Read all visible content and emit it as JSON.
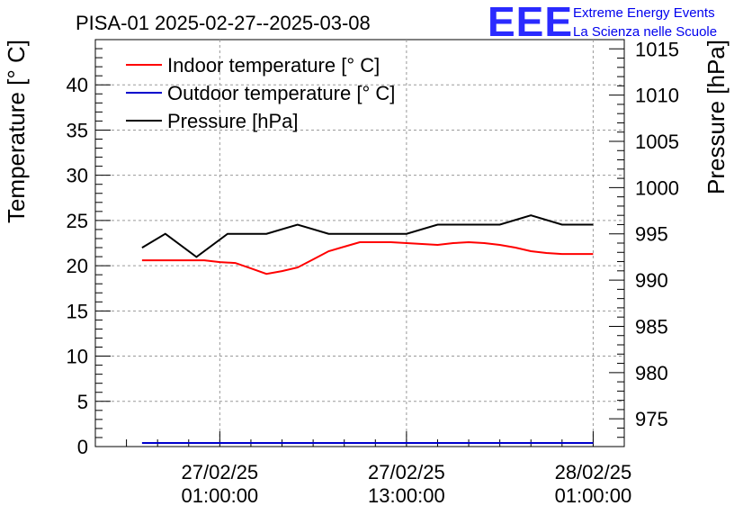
{
  "chart_data": {
    "type": "line",
    "title": "PISA-01 2025-02-27--2025-03-08",
    "ylabel_left": "Temperature [° C]",
    "ylabel_right": "Pressure [hPa]",
    "xlabel": "",
    "x_range_hours": [
      -8,
      26
    ],
    "ylim_left": [
      0,
      45
    ],
    "ylim_right": [
      972,
      1016
    ],
    "left_ticks": [
      0,
      5,
      10,
      15,
      20,
      25,
      30,
      35,
      40
    ],
    "right_ticks": [
      975,
      980,
      985,
      990,
      995,
      1000,
      1005,
      1010,
      1015
    ],
    "x_ticks": [
      {
        "hour": 0,
        "line1": "27/02/25",
        "line2": "01:00:00"
      },
      {
        "hour": 12,
        "line1": "27/02/25",
        "line2": "13:00:00"
      },
      {
        "hour": 24,
        "line1": "28/02/25",
        "line2": "01:00:00"
      }
    ],
    "grid": true,
    "legend_position": "top-left",
    "series": [
      {
        "name": "Indoor temperature [° C]",
        "color": "#ff0000",
        "axis": "left",
        "x": [
          -5,
          -3,
          -2,
          -1,
          0,
          1,
          2,
          3,
          4,
          5,
          6,
          7,
          8,
          9,
          10,
          11,
          12,
          13,
          14,
          15,
          16,
          17,
          18,
          19,
          20,
          21,
          22,
          23,
          24
        ],
        "values": [
          20.6,
          20.6,
          20.6,
          20.6,
          20.4,
          20.3,
          19.7,
          19.1,
          19.4,
          19.8,
          20.7,
          21.6,
          22.1,
          22.6,
          22.6,
          22.6,
          22.5,
          22.4,
          22.3,
          22.5,
          22.6,
          22.5,
          22.3,
          22.0,
          21.6,
          21.4,
          21.3,
          21.3,
          21.3
        ]
      },
      {
        "name": "Outdoor temperature [° C]",
        "color": "#0000cc",
        "axis": "left",
        "x": [
          -5,
          24
        ],
        "values": [
          0.4,
          0.4
        ]
      },
      {
        "name": "Pressure [hPa]",
        "color": "#000000",
        "axis": "right",
        "x": [
          -5,
          -3.5,
          -1.5,
          0.5,
          3,
          5,
          7,
          9,
          11,
          12,
          14,
          16,
          18,
          20,
          22,
          24
        ],
        "values": [
          993.5,
          995,
          992.5,
          995,
          995,
          996,
          995,
          995,
          995,
          995,
          996,
          996,
          996,
          997,
          996,
          996
        ]
      }
    ]
  },
  "logo": {
    "mark": "EEE",
    "line1": "Extreme Energy Events",
    "line2": "La Scienza nelle Scuole"
  }
}
